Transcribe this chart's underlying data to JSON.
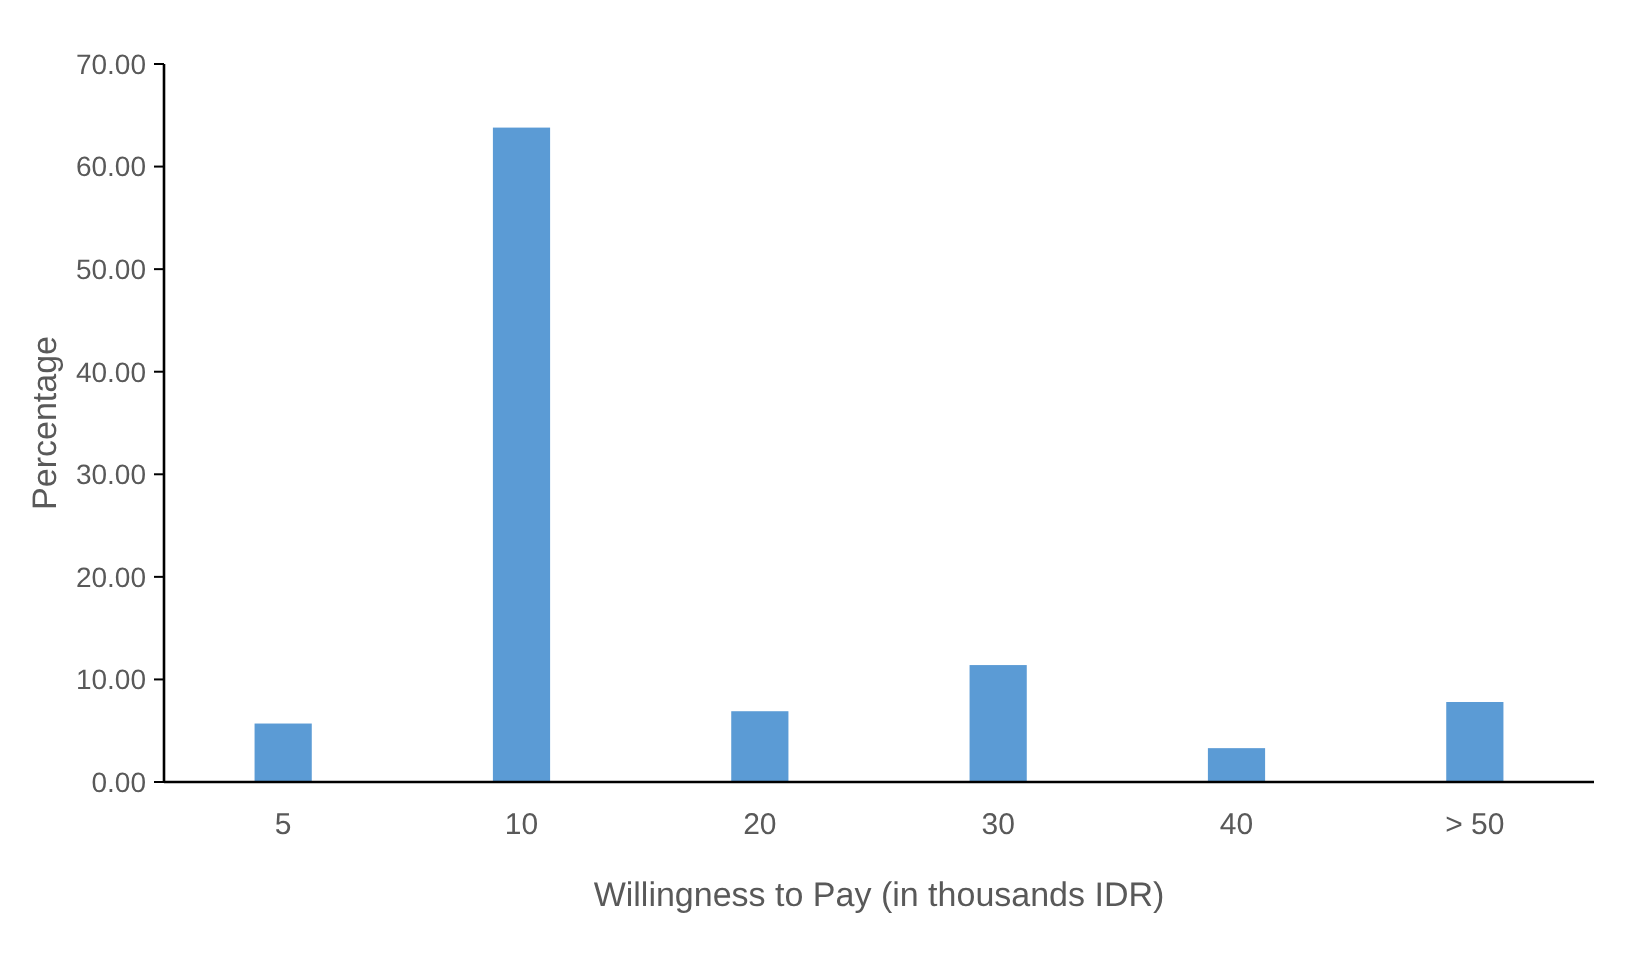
{
  "chart_data": {
    "type": "bar",
    "xlabel": "Willingness to Pay (in thousands IDR)",
    "ylabel": "Percentage",
    "categories": [
      "5",
      "10",
      "20",
      "30",
      "40",
      "> 50"
    ],
    "values": [
      5.7,
      63.8,
      6.9,
      11.4,
      3.3,
      7.8
    ],
    "color": "#5b9bd5",
    "ylim": [
      0,
      70
    ],
    "yticks": [
      {
        "value": 0,
        "label": "0.00"
      },
      {
        "value": 10,
        "label": "10.00"
      },
      {
        "value": 20,
        "label": "20.00"
      },
      {
        "value": 30,
        "label": "30.00"
      },
      {
        "value": 40,
        "label": "40.00"
      },
      {
        "value": 50,
        "label": "50.00"
      },
      {
        "value": 60,
        "label": "60.00"
      },
      {
        "value": 70,
        "label": "70.00"
      }
    ],
    "grid": false
  }
}
